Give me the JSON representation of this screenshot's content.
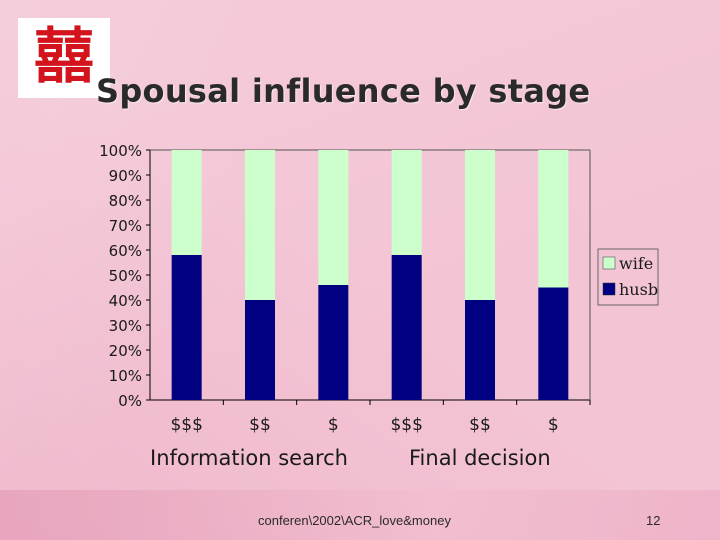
{
  "logo": {
    "glyph": "囍"
  },
  "title": "Spousal influence by stage",
  "footer": {
    "text": "conferen\\2002\\ACR_love&money",
    "page": "12"
  },
  "colors": {
    "wife": "#ccffcc",
    "husb": "#000080",
    "background": "#f3c4d4"
  },
  "chart_data": {
    "type": "bar",
    "stacked": true,
    "categories": [
      "$$$",
      "$$",
      "$",
      "$$$",
      "$$",
      "$"
    ],
    "groups": [
      "Information search",
      "Final decision"
    ],
    "series": [
      {
        "name": "husb",
        "values": [
          58,
          40,
          46,
          58,
          40,
          45
        ]
      },
      {
        "name": "wife",
        "values": [
          42,
          60,
          54,
          42,
          60,
          55
        ]
      }
    ],
    "yticks": [
      "0%",
      "10%",
      "20%",
      "30%",
      "40%",
      "50%",
      "60%",
      "70%",
      "80%",
      "90%",
      "100%"
    ],
    "ylim": [
      0,
      100
    ],
    "legend": [
      "wife",
      "husb"
    ],
    "legend_position": "right",
    "grid": false
  }
}
